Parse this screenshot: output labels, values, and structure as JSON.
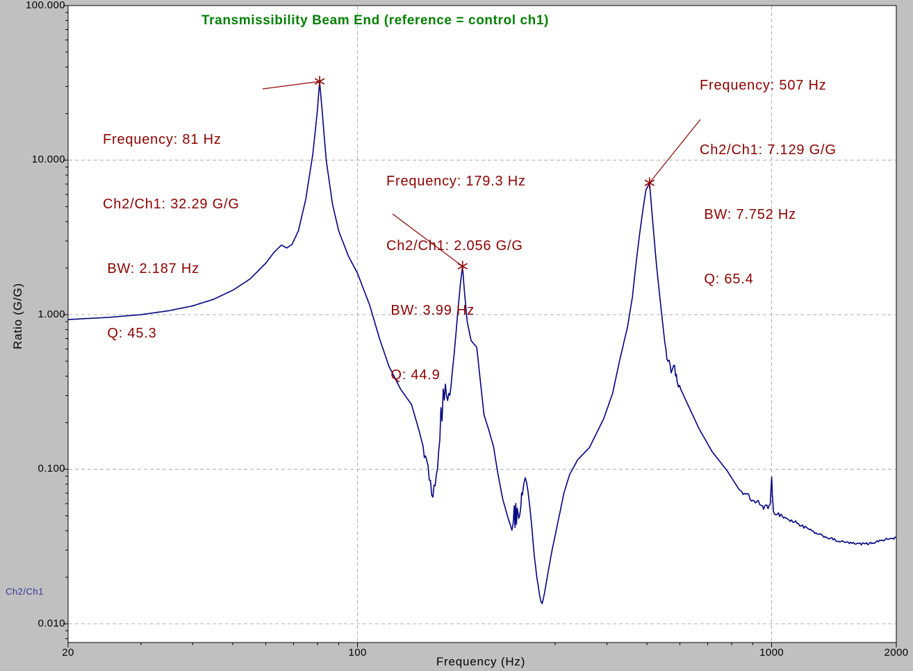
{
  "window": {
    "background": "#c0c0c0",
    "plot_background": "#ffffff"
  },
  "chart_data": {
    "type": "line",
    "title": "Transmissibility Beam End (reference = control ch1)",
    "title_color": "#008000",
    "xlabel": "Frequency (Hz)",
    "ylabel": "Ratio (G/G)",
    "trace_label": "Ch2/Ch1",
    "trace_label_color": "#3333A0",
    "line_color": "#000080",
    "annotation_color": "#8B0000",
    "grid_color": "#ADADAD",
    "x_scale": "log",
    "y_scale": "log",
    "x_range": [
      20,
      2000
    ],
    "y_range": [
      0.00756,
      100
    ],
    "x_ticks": [
      {
        "value": 20,
        "label": "20"
      },
      {
        "value": 100,
        "label": "100"
      },
      {
        "value": 1000,
        "label": "1000"
      },
      {
        "value": 2000,
        "label": "2000"
      }
    ],
    "y_ticks": [
      {
        "value": 100,
        "label": "100.000"
      },
      {
        "value": 10,
        "label": "10.000"
      },
      {
        "value": 1,
        "label": "1.000"
      },
      {
        "value": 0.1,
        "label": "0.100"
      },
      {
        "value": 0.01,
        "label": "0.010"
      }
    ],
    "grid": {
      "x_values": [
        100,
        1000
      ],
      "y_values": [
        10,
        1,
        0.1,
        0.01
      ]
    },
    "annotations": [
      {
        "frequency_hz": 81,
        "ratio_gg": 32.29,
        "bw_hz": 2.187,
        "q": 45.3,
        "lines": [
          "Frequency: 81 Hz",
          "Ch2/Ch1: 32.29 G/G",
          " BW: 2.187 Hz",
          " Q: 45.3"
        ],
        "text_pos": [
          148,
          124
        ],
        "leader_start": [
          378,
          128
        ]
      },
      {
        "frequency_hz": 179.3,
        "ratio_gg": 2.056,
        "bw_hz": 3.99,
        "q": 44.9,
        "lines": [
          "Frequency: 179.3 Hz",
          "Ch2/Ch1: 2.056 G/G",
          " BW: 3.99 Hz",
          " Q: 44.9"
        ],
        "text_pos": [
          556,
          184
        ],
        "leader_start": [
          565,
          308
        ]
      },
      {
        "frequency_hz": 507,
        "ratio_gg": 7.129,
        "bw_hz": 7.752,
        "q": 65.4,
        "lines": [
          "Frequency: 507 Hz",
          "Ch2/Ch1: 7.129 G/G",
          " BW: 7.752 Hz",
          " Q: 65.4"
        ],
        "text_pos": [
          1007,
          46
        ],
        "leader_start": [
          1008,
          172
        ]
      }
    ],
    "noise_bands": [
      {
        "from": 144,
        "to": 168,
        "amp": 0.05
      },
      {
        "from": 236,
        "to": 250,
        "amp": 0.05
      },
      {
        "from": 272,
        "to": 284,
        "amp": 0.03
      },
      {
        "from": 555,
        "to": 600,
        "amp": 0.035
      },
      {
        "from": 850,
        "to": 995,
        "amp": 0.02
      },
      {
        "from": 1004,
        "to": 1200,
        "amp": 0.015
      },
      {
        "from": 1200,
        "to": 2000,
        "amp": 0.008
      }
    ],
    "series": [
      {
        "name": "Ch2/Ch1",
        "points": [
          [
            20,
            0.93
          ],
          [
            25,
            0.96
          ],
          [
            30,
            1.0
          ],
          [
            35,
            1.06
          ],
          [
            40,
            1.14
          ],
          [
            45,
            1.26
          ],
          [
            50,
            1.44
          ],
          [
            55,
            1.7
          ],
          [
            60,
            2.15
          ],
          [
            63,
            2.55
          ],
          [
            65.5,
            2.82
          ],
          [
            67.5,
            2.7
          ],
          [
            69.5,
            2.85
          ],
          [
            72,
            3.5
          ],
          [
            75,
            5.6
          ],
          [
            78,
            11
          ],
          [
            80,
            21
          ],
          [
            81,
            32.29
          ],
          [
            82,
            22
          ],
          [
            84,
            10
          ],
          [
            87,
            5.2
          ],
          [
            90,
            3.5
          ],
          [
            95,
            2.4
          ],
          [
            100,
            1.85
          ],
          [
            107,
            1.15
          ],
          [
            113,
            0.7
          ],
          [
            119,
            0.465
          ],
          [
            127,
            0.33
          ],
          [
            135,
            0.262
          ],
          [
            141,
            0.175
          ],
          [
            146,
            0.122
          ],
          [
            149,
            0.085
          ],
          [
            151,
            0.068
          ],
          [
            153,
            0.079
          ],
          [
            155,
            0.092
          ],
          [
            157,
            0.13
          ],
          [
            158,
            0.155
          ],
          [
            159,
            0.25
          ],
          [
            160,
            0.205
          ],
          [
            161,
            0.33
          ],
          [
            162,
            0.28
          ],
          [
            163,
            0.355
          ],
          [
            164,
            0.3
          ],
          [
            165,
            0.278
          ],
          [
            167,
            0.3
          ],
          [
            169,
            0.4
          ],
          [
            171,
            0.55
          ],
          [
            173,
            0.78
          ],
          [
            175,
            1.1
          ],
          [
            177,
            1.55
          ],
          [
            179.3,
            2.056
          ],
          [
            181,
            1.45
          ],
          [
            184,
            0.9
          ],
          [
            188,
            0.68
          ],
          [
            194,
            0.615
          ],
          [
            202,
            0.225
          ],
          [
            208,
            0.175
          ],
          [
            213,
            0.14
          ],
          [
            218,
            0.095
          ],
          [
            224,
            0.0647
          ],
          [
            230,
            0.05
          ],
          [
            236,
            0.0403
          ],
          [
            239,
            0.058
          ],
          [
            240,
            0.042
          ],
          [
            241,
            0.06
          ],
          [
            242,
            0.044
          ],
          [
            243,
            0.056
          ],
          [
            245,
            0.048
          ],
          [
            248,
            0.058
          ],
          [
            250,
            0.068
          ],
          [
            252,
            0.08
          ],
          [
            254,
            0.088
          ],
          [
            256,
            0.082
          ],
          [
            258,
            0.072
          ],
          [
            261,
            0.055
          ],
          [
            264,
            0.04
          ],
          [
            267,
            0.028
          ],
          [
            271,
            0.02
          ],
          [
            275,
            0.0155
          ],
          [
            279,
            0.0135
          ],
          [
            283,
            0.016
          ],
          [
            288,
            0.021
          ],
          [
            295,
            0.03
          ],
          [
            305,
            0.046
          ],
          [
            315,
            0.07
          ],
          [
            325,
            0.092
          ],
          [
            340,
            0.115
          ],
          [
            363,
            0.138
          ],
          [
            393,
            0.212
          ],
          [
            413,
            0.31
          ],
          [
            429,
            0.5
          ],
          [
            449,
            0.84
          ],
          [
            461,
            1.3
          ],
          [
            470,
            2.1
          ],
          [
            479,
            3.2
          ],
          [
            489,
            4.8
          ],
          [
            497,
            6.4
          ],
          [
            507,
            7.129
          ],
          [
            517,
            3.8
          ],
          [
            527,
            2.1
          ],
          [
            537,
            1.3
          ],
          [
            552,
            0.66
          ],
          [
            562,
            0.5
          ],
          [
            572,
            0.42
          ],
          [
            580,
            0.47
          ],
          [
            586,
            0.4
          ],
          [
            591,
            0.37
          ],
          [
            621,
            0.278
          ],
          [
            667,
            0.184
          ],
          [
            718,
            0.13
          ],
          [
            780,
            0.098
          ],
          [
            834,
            0.074
          ],
          [
            900,
            0.063
          ],
          [
            950,
            0.058
          ],
          [
            980,
            0.0555
          ],
          [
            992,
            0.059
          ],
          [
            1000,
            0.089
          ],
          [
            1004,
            0.068
          ],
          [
            1010,
            0.053
          ],
          [
            1060,
            0.05
          ],
          [
            1100,
            0.047
          ],
          [
            1160,
            0.0445
          ],
          [
            1290,
            0.038
          ],
          [
            1450,
            0.0342
          ],
          [
            1600,
            0.0328
          ],
          [
            1720,
            0.033
          ],
          [
            1850,
            0.0348
          ],
          [
            2000,
            0.036
          ]
        ]
      }
    ]
  }
}
